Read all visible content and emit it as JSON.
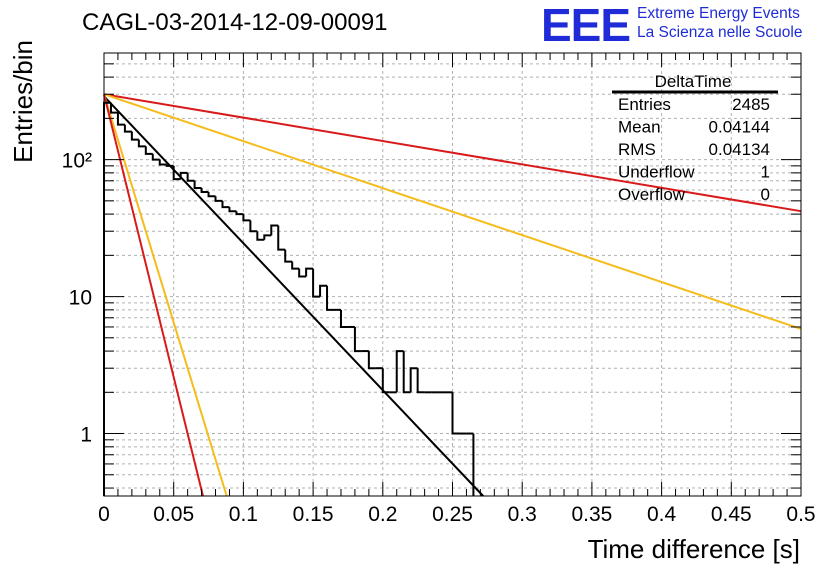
{
  "title": "CAGL-03-2014-12-09-00091",
  "logo": {
    "mark": "EEE",
    "line1": "Extreme Energy Events",
    "line2": "La Scienza nelle Scuole"
  },
  "stats_box": {
    "name": "DeltaTime",
    "rows": [
      {
        "label": "Entries",
        "value": "2485"
      },
      {
        "label": "Mean",
        "value": "0.04144"
      },
      {
        "label": "RMS",
        "value": "0.04134"
      },
      {
        "label": "Underflow",
        "value": "1"
      },
      {
        "label": "Overflow",
        "value": "0"
      }
    ]
  },
  "chart_data": {
    "type": "histogram",
    "xlabel": "Time difference [s]",
    "ylabel": "Entries/bin",
    "xlim": [
      0,
      0.5
    ],
    "ylim": [
      0.35,
      600
    ],
    "ylog": true,
    "grid": true,
    "x_ticks": [
      "0",
      "0.05",
      "0.1",
      "0.15",
      "0.2",
      "0.25",
      "0.3",
      "0.35",
      "0.4",
      "0.45",
      "0.5"
    ],
    "y_ticks": [
      "1",
      "10",
      "10²"
    ],
    "bin_width": 0.005,
    "histogram_values": [
      260,
      220,
      180,
      160,
      140,
      125,
      110,
      100,
      92,
      90,
      72,
      80,
      70,
      62,
      58,
      54,
      50,
      45,
      42,
      40,
      36,
      30,
      26,
      28,
      33,
      22,
      18,
      16,
      14,
      16,
      10,
      12,
      8,
      8,
      6,
      6,
      4,
      4,
      3,
      3,
      2,
      2,
      4,
      2,
      3,
      2,
      2,
      2,
      2,
      2,
      1,
      1,
      1
    ],
    "fit_curves": [
      {
        "color": "#000000",
        "points": [
          [
            0,
            290
          ],
          [
            0.272,
            0.35
          ]
        ]
      },
      {
        "color": "#d91a1a",
        "points": [
          [
            0,
            300
          ],
          [
            0.5,
            42
          ]
        ]
      },
      {
        "color": "#f5bc1c",
        "points": [
          [
            0,
            300
          ],
          [
            0.5,
            5.8
          ]
        ]
      },
      {
        "color": "#f5bc1c",
        "points": [
          [
            0,
            300
          ],
          [
            0.088,
            0.35
          ]
        ]
      },
      {
        "color": "#d91a1a",
        "points": [
          [
            0,
            300
          ],
          [
            0.071,
            0.35
          ]
        ]
      }
    ]
  }
}
